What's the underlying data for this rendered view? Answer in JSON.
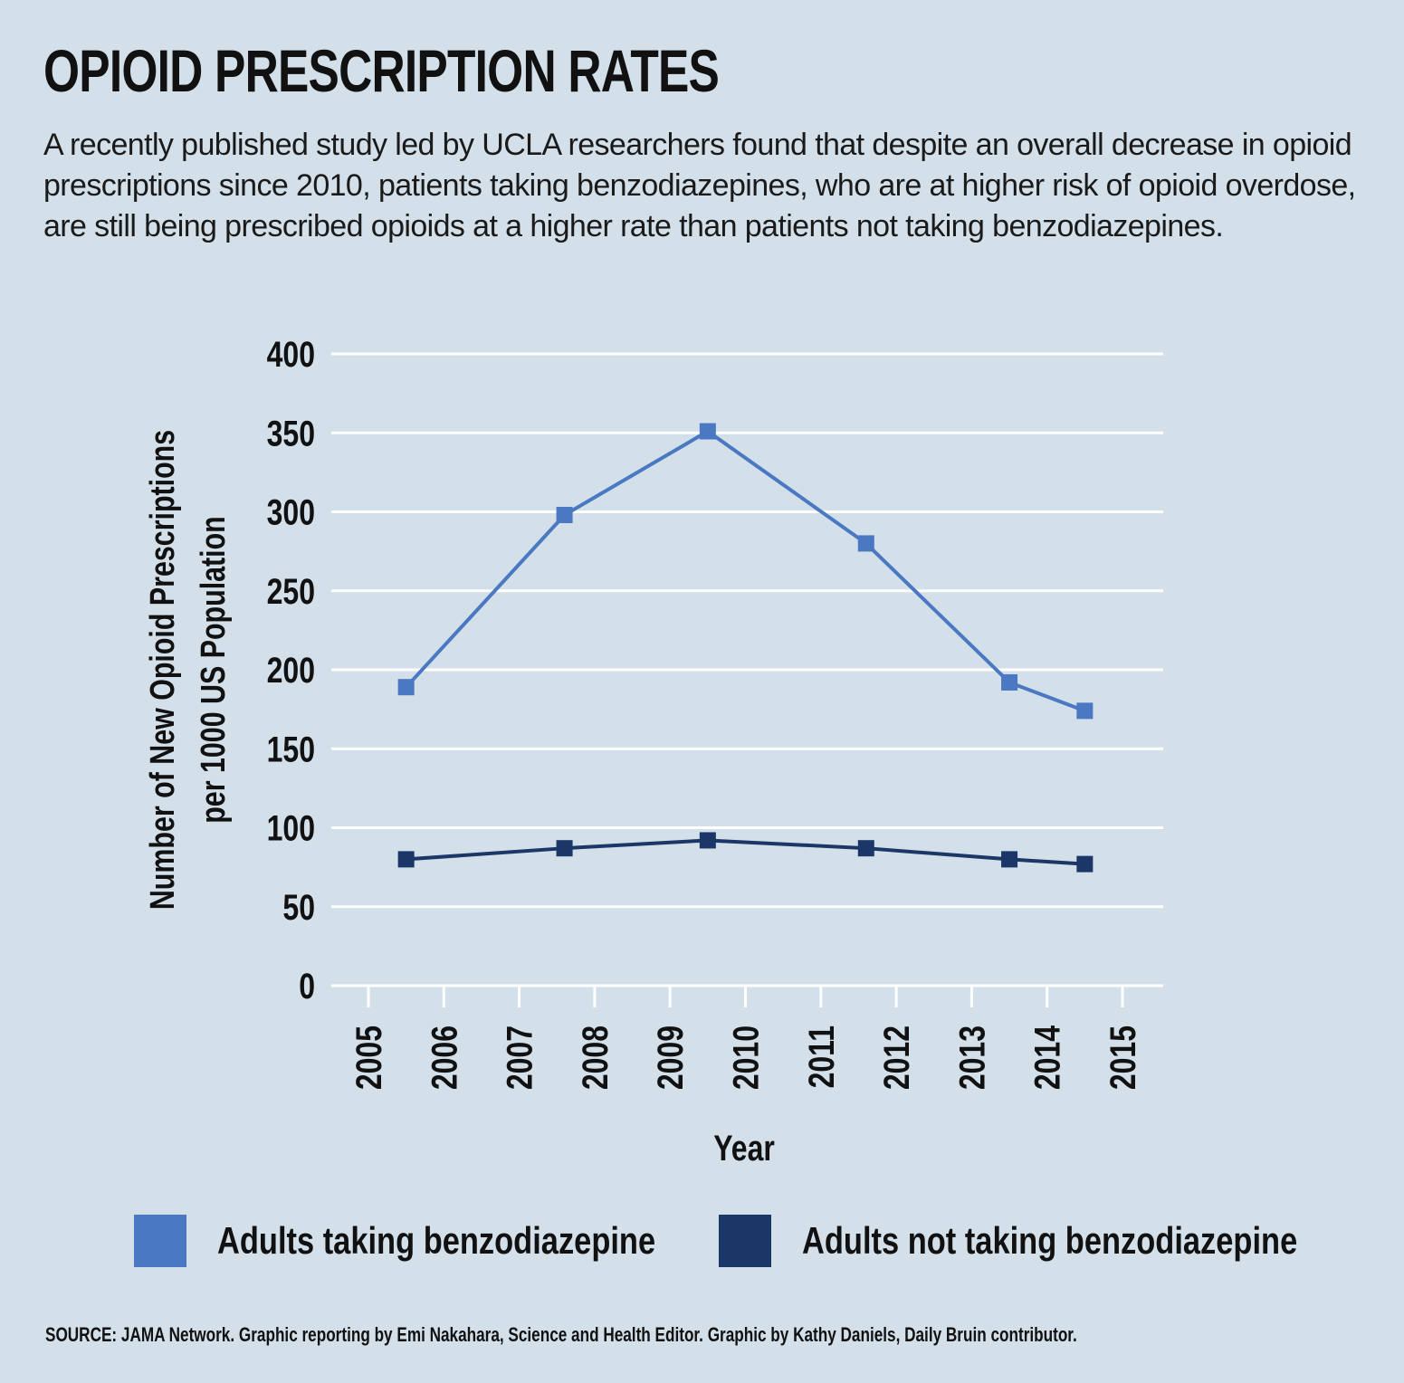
{
  "header": {
    "title": "OPIOID PRESCRIPTION RATES",
    "subtitle": "A recently published study led by UCLA researchers found that despite an overall decrease in opioid prescriptions since 2010, patients taking benzodiazepines, who are at higher risk of opioid overdose, are still being prescribed opioids at a higher rate than patients not taking benzodiazepines."
  },
  "chart_data": {
    "type": "line",
    "xlabel": "Year",
    "ylabel_lines": [
      "Number of New Opioid Prescriptions",
      "per 1000 US Population"
    ],
    "x_ticks": [
      "2005",
      "2006",
      "2007",
      "2008",
      "2009",
      "2010",
      "2011",
      "2012",
      "2013",
      "2014",
      "2015"
    ],
    "xlim": [
      2005,
      2015
    ],
    "y_ticks": [
      "0",
      "50",
      "100",
      "150",
      "200",
      "250",
      "300",
      "350",
      "400"
    ],
    "ylim": [
      0,
      400
    ],
    "grid": true,
    "legend_position": "bottom",
    "series": [
      {
        "name": "Adults taking benzodiazepine",
        "color": "#4a78c2",
        "x": [
          2005.5,
          2007.6,
          2009.5,
          2011.6,
          2013.5,
          2014.5
        ],
        "values": [
          189,
          298,
          351,
          280,
          192,
          174
        ]
      },
      {
        "name": "Adults not taking benzodiazepine",
        "color": "#1b3768",
        "x": [
          2005.5,
          2007.6,
          2009.5,
          2011.6,
          2013.5,
          2014.5
        ],
        "values": [
          80,
          87,
          92,
          87,
          80,
          77
        ]
      }
    ]
  },
  "legend": {
    "items": [
      {
        "label": "Adults taking benzodiazepine",
        "color": "#4a78c2"
      },
      {
        "label": "Adults not taking benzodiazepine",
        "color": "#1b3768"
      }
    ]
  },
  "footer": {
    "source": "SOURCE: JAMA Network. Graphic reporting by Emi Nakahara, Science and Health Editor. Graphic by Kathy Daniels, Daily Bruin contributor."
  }
}
